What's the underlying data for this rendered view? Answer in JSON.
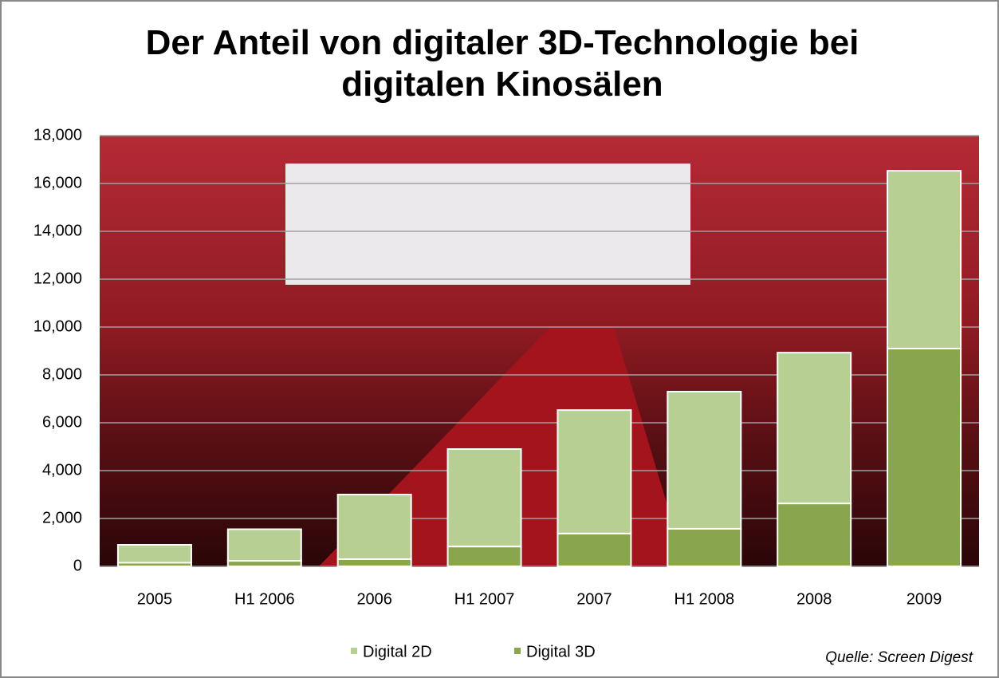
{
  "chart_data": {
    "type": "stacked_bar",
    "title": "Der Anteil von digitaler 3D-Technologie bei digitalen Kinosälen",
    "categories": [
      "2005",
      "H1 2006",
      "2006",
      "H1 2007",
      "2007",
      "H1 2008",
      "2008",
      "2009"
    ],
    "series": [
      {
        "name": "Digital 2D",
        "color": "#b8cf94",
        "values": [
          750,
          1320,
          2700,
          4070,
          5160,
          5730,
          6300,
          7430
        ]
      },
      {
        "name": "Digital 3D",
        "color": "#89a64f",
        "values": [
          150,
          230,
          300,
          830,
          1370,
          1570,
          2630,
          9100
        ]
      }
    ],
    "ylim": [
      0,
      18000
    ],
    "yticks": [
      0,
      {
        "value": 2000,
        "label": "2,000"
      },
      {
        "value": 4000,
        "label": "4,000"
      },
      {
        "value": 6000,
        "label": "6,000"
      },
      {
        "value": 8000,
        "label": "8,000"
      },
      {
        "value": 10000,
        "label": "10,000"
      },
      {
        "value": 12000,
        "label": "12,000"
      },
      {
        "value": 14000,
        "label": "14,000"
      },
      {
        "value": 16000,
        "label": "16,000"
      },
      {
        "value": 18000,
        "label": "18,000"
      }
    ],
    "grid": true,
    "legend": "bottom",
    "source": "Quelle: Screen Digest"
  }
}
